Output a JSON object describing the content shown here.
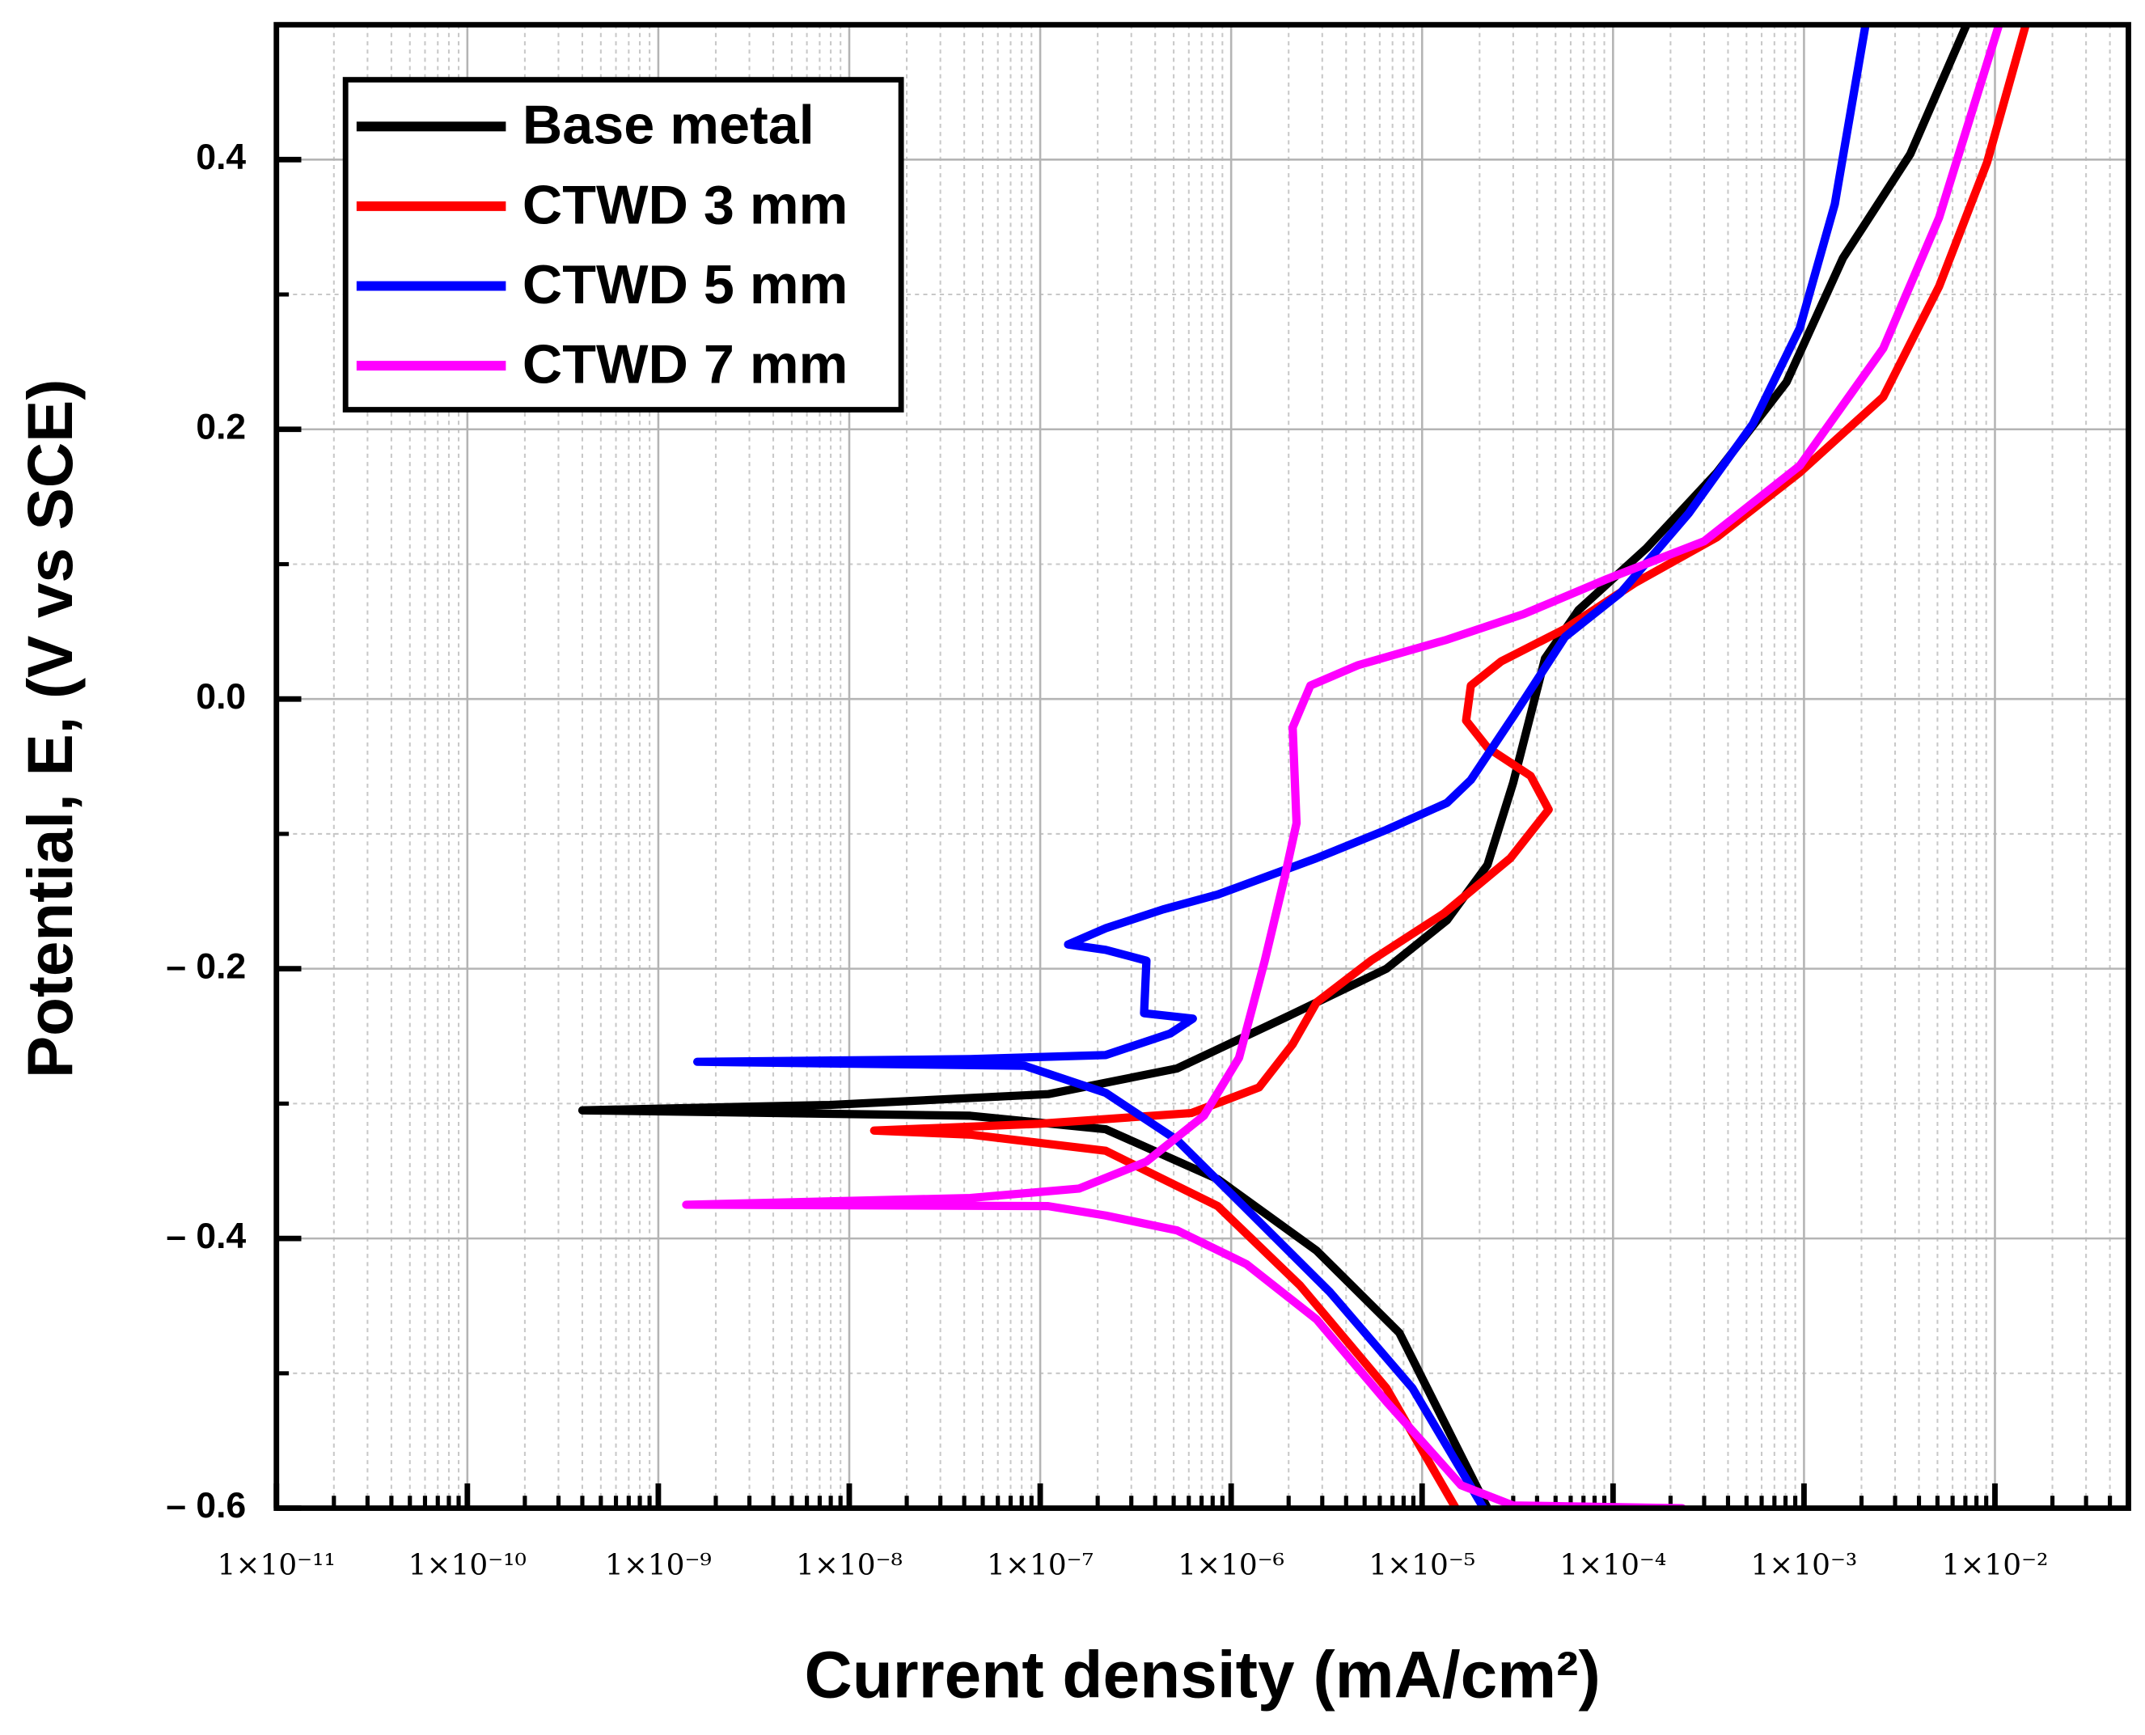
{
  "chart_data": {
    "type": "line",
    "xlabel": "Current density (mA/cm²)",
    "ylabel": "Potential, E, (V vs SCE)",
    "xscale": "log",
    "xlim": [
      1e-11,
      0.05
    ],
    "ylim": [
      -0.6,
      0.5
    ],
    "xticks": [
      {
        "value": 1e-11,
        "label": "1×10⁻¹¹"
      },
      {
        "value": 1e-10,
        "label": "1×10⁻¹⁰"
      },
      {
        "value": 1e-09,
        "label": "1×10⁻⁹"
      },
      {
        "value": 1e-08,
        "label": "1×10⁻⁸"
      },
      {
        "value": 1e-07,
        "label": "1×10⁻⁷"
      },
      {
        "value": 1e-06,
        "label": "1×10⁻⁶"
      },
      {
        "value": 1e-05,
        "label": "1×10⁻⁵"
      },
      {
        "value": 0.0001,
        "label": "1×10⁻⁴"
      },
      {
        "value": 0.001,
        "label": "1×10⁻³"
      },
      {
        "value": 0.01,
        "label": "1×10⁻²"
      }
    ],
    "yticks": [
      {
        "value": -0.6,
        "label": "– 0.6"
      },
      {
        "value": -0.4,
        "label": "– 0.4"
      },
      {
        "value": -0.2,
        "label": "– 0.2"
      },
      {
        "value": 0,
        "label": "0.0"
      },
      0.2,
      0.4
    ],
    "grid": true,
    "minor_grid": true,
    "legend": "upper left",
    "series": [
      {
        "name": "Base metal",
        "color": "#000000",
        "x": [
          2.2e-05,
          7.6e-06,
          2.8e-06,
          8.5e-07,
          2.2e-07,
          4.3e-08,
          4e-10,
          7.9e-09,
          1.1e-07,
          5.2e-07,
          2e-06,
          6.5e-06,
          1.35e-05,
          2.2e-05,
          3e-05,
          4.4e-05,
          6.6e-05,
          0.00015,
          0.00035,
          0.00081,
          0.0016,
          0.0036,
          0.0071
        ],
        "values": [
          -0.6,
          -0.47,
          -0.409,
          -0.356,
          -0.319,
          -0.309,
          -0.305,
          -0.301,
          -0.293,
          -0.274,
          -0.235,
          -0.2,
          -0.164,
          -0.123,
          -0.062,
          0.03,
          0.066,
          0.112,
          0.168,
          0.235,
          0.327,
          0.404,
          0.5
        ]
      },
      {
        "name": "CTWD 3 mm",
        "color": "#ff0000",
        "x": [
          1.5e-05,
          6.5e-06,
          2.3e-06,
          8.5e-07,
          2.2e-07,
          4.3e-08,
          1.35e-08,
          9.8e-08,
          6.2e-07,
          1.4e-06,
          2.1e-06,
          2.8e-06,
          5.4e-06,
          1.3e-05,
          2.9e-05,
          4.6e-05,
          3.7e-05,
          2.2e-05,
          1.7e-05,
          1.8e-05,
          2.6e-05,
          5.6e-05,
          0.00013,
          0.00035,
          0.00095,
          0.0026,
          0.0051,
          0.0091,
          0.0145
        ],
        "values": [
          -0.6,
          -0.511,
          -0.435,
          -0.376,
          -0.335,
          -0.323,
          -0.32,
          -0.315,
          -0.307,
          -0.288,
          -0.256,
          -0.225,
          -0.194,
          -0.159,
          -0.118,
          -0.082,
          -0.057,
          -0.036,
          -0.016,
          0.01,
          0.028,
          0.052,
          0.086,
          0.12,
          0.168,
          0.224,
          0.306,
          0.398,
          0.5
        ]
      },
      {
        "name": "CTWD 5 mm",
        "color": "#0000ff",
        "x": [
          2.1e-05,
          8.9e-06,
          3.3e-06,
          1.2e-06,
          5.2e-07,
          2.2e-07,
          8.3e-08,
          1.6e-09,
          4.3e-08,
          2.2e-07,
          4.8e-07,
          6.3e-07,
          3.5e-07,
          3.6e-07,
          2.2e-07,
          1.4e-07,
          2.2e-07,
          4.4e-07,
          8.5e-07,
          2.8e-06,
          6.5e-06,
          1.35e-05,
          1.8e-05,
          3e-05,
          5.6e-05,
          0.00011,
          0.00025,
          0.00054,
          0.00095,
          0.00145,
          0.0021
        ],
        "values": [
          -0.6,
          -0.511,
          -0.44,
          -0.378,
          -0.327,
          -0.292,
          -0.272,
          -0.269,
          -0.267,
          -0.264,
          -0.248,
          -0.237,
          -0.233,
          -0.194,
          -0.186,
          -0.182,
          -0.17,
          -0.156,
          -0.145,
          -0.118,
          -0.097,
          -0.077,
          -0.06,
          -0.013,
          0.046,
          0.079,
          0.138,
          0.204,
          0.275,
          0.367,
          0.5
        ]
      },
      {
        "name": "CTWD 7 mm",
        "color": "#ff00ff",
        "x": [
          0.00023,
          3e-05,
          1.6e-05,
          6.5e-06,
          2.8e-06,
          1.2e-06,
          5.2e-07,
          2.2e-07,
          1.1e-07,
          1.4e-09,
          4.3e-08,
          1.6e-07,
          3.6e-07,
          7.2e-07,
          1.1e-06,
          1.5e-06,
          1.9e-06,
          2.2e-06,
          2.1e-06,
          2.6e-06,
          4.6e-06,
          1.35e-05,
          3.4e-05,
          9.3e-05,
          0.0003,
          0.00095,
          0.0026,
          0.0051,
          0.0105
        ],
        "values": [
          -0.6,
          -0.598,
          -0.583,
          -0.521,
          -0.46,
          -0.419,
          -0.394,
          -0.383,
          -0.376,
          -0.375,
          -0.37,
          -0.363,
          -0.343,
          -0.309,
          -0.266,
          -0.194,
          -0.133,
          -0.092,
          -0.021,
          0.01,
          0.025,
          0.044,
          0.063,
          0.089,
          0.117,
          0.173,
          0.26,
          0.357,
          0.5
        ]
      }
    ]
  }
}
